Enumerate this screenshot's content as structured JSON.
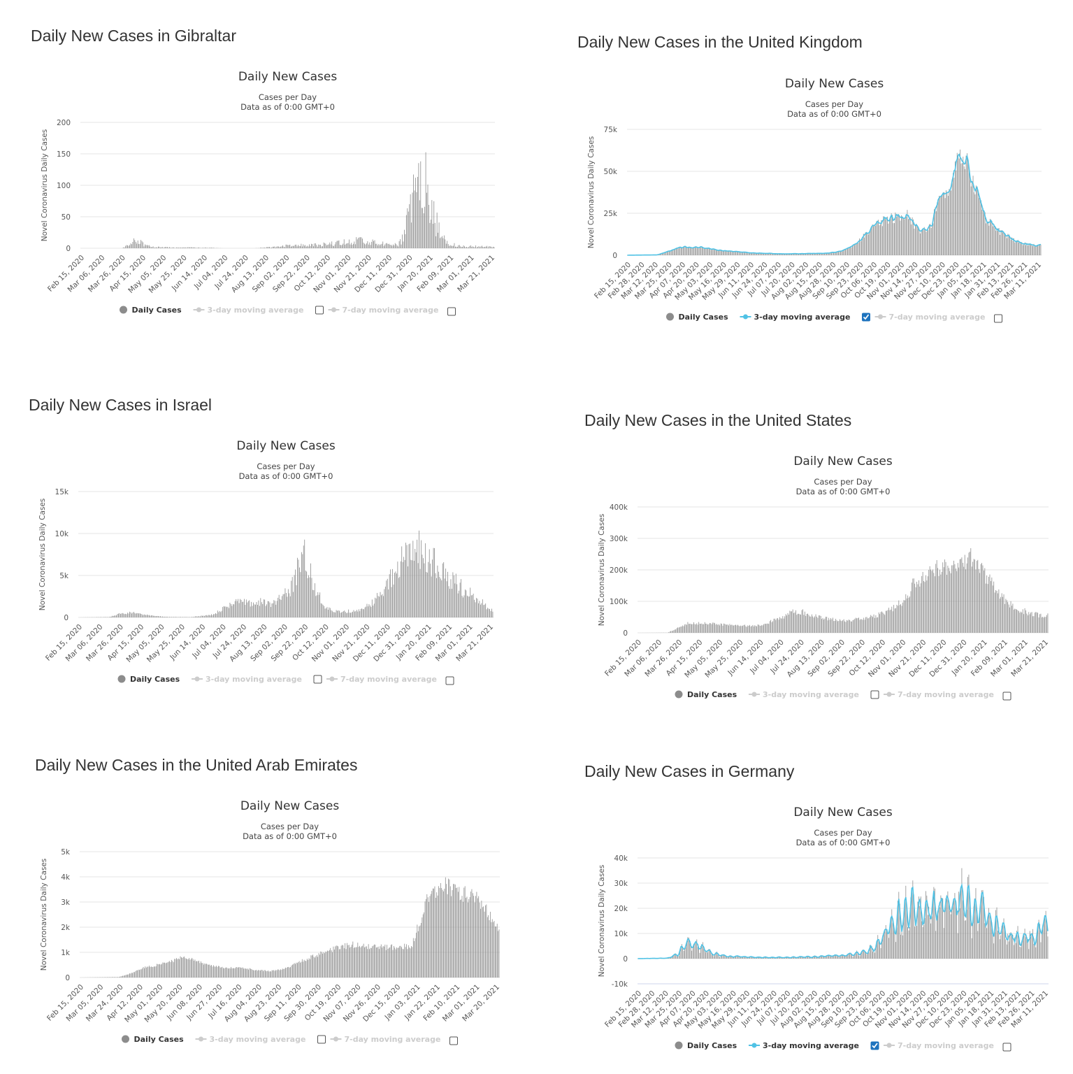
{
  "common": {
    "chart_title": "Daily New Cases",
    "subtitle_1": "Cases per Day",
    "subtitle_2": "Data as of 0:00 GMT+0",
    "ylabel": "Novel Coronavirus Daily Cases",
    "legend": {
      "daily": "Daily Cases",
      "ma3": "3-day moving average",
      "ma7": "7-day moving average"
    }
  },
  "colors": {
    "bar": "#8c8c8c",
    "ma3": "#50c2e5",
    "grid": "#e6e6e6",
    "axis": "#ccd6eb"
  },
  "panels": [
    {
      "heading": "Daily New Cases in Gibraltar",
      "ma3_checked": false,
      "chart_data": {
        "type": "bar",
        "xlabel": "",
        "ylabel": "Novel Coronavirus Daily Cases",
        "ylim": [
          0,
          200
        ],
        "yticks": [
          "0",
          "50",
          "100",
          "150",
          "200"
        ],
        "xticks": [
          "Feb 15, 2020",
          "Mar 06, 2020",
          "Mar 26, 2020",
          "Apr 15, 2020",
          "May 05, 2020",
          "May 25, 2020",
          "Jun 14, 2020",
          "Jul 04, 2020",
          "Jul 24, 2020",
          "Aug 13, 2020",
          "Sep 02, 2020",
          "Sep 22, 2020",
          "Oct 12, 2020",
          "Nov 01, 2020",
          "Nov 21, 2020",
          "Dec 11, 2020",
          "Dec 31, 2020",
          "Jan 20, 2021",
          "Feb 09, 2021",
          "Mar 01, 2021",
          "Mar 21, 2021"
        ],
        "series_knots": [
          [
            0,
            0
          ],
          [
            40,
            0
          ],
          [
            48,
            5
          ],
          [
            55,
            14
          ],
          [
            60,
            8
          ],
          [
            70,
            2
          ],
          [
            90,
            1
          ],
          [
            120,
            1
          ],
          [
            140,
            0
          ],
          [
            160,
            0
          ],
          [
            170,
            0
          ],
          [
            190,
            2
          ],
          [
            210,
            5
          ],
          [
            230,
            5
          ],
          [
            250,
            8
          ],
          [
            260,
            10
          ],
          [
            270,
            12
          ],
          [
            280,
            10
          ],
          [
            290,
            8
          ],
          [
            300,
            6
          ],
          [
            310,
            5
          ],
          [
            315,
            15
          ],
          [
            320,
            45
          ],
          [
            325,
            90
          ],
          [
            330,
            130
          ],
          [
            335,
            110
          ],
          [
            340,
            90
          ],
          [
            345,
            60
          ],
          [
            350,
            30
          ],
          [
            355,
            15
          ],
          [
            360,
            8
          ],
          [
            370,
            4
          ],
          [
            380,
            3
          ],
          [
            395,
            3
          ],
          [
            405,
            2
          ]
        ],
        "bar_noise": 0.6
      }
    },
    {
      "heading": "Daily New Cases in the United Kingdom",
      "ma3_checked": true,
      "chart_data": {
        "type": "bar",
        "xlabel": "",
        "ylabel": "Novel Coronavirus Daily Cases",
        "ylim": [
          0,
          75000
        ],
        "yticks": [
          "0",
          "25k",
          "50k",
          "75k"
        ],
        "xticks": [
          "Feb 15, 2020",
          "Feb 28, 2020",
          "Mar 12, 2020",
          "Mar 25, 2020",
          "Apr 07, 2020",
          "Apr 20, 2020",
          "May 03, 2020",
          "May 16, 2020",
          "May 29, 2020",
          "Jun 11, 2020",
          "Jun 24, 2020",
          "Jul 07, 2020",
          "Jul 20, 2020",
          "Aug 02, 2020",
          "Aug 15, 2020",
          "Aug 28, 2020",
          "Sep 10, 2020",
          "Sep 23, 2020",
          "Oct 06, 2020",
          "Oct 19, 2020",
          "Nov 01, 2020",
          "Nov 14, 2020",
          "Nov 27, 2020",
          "Dec 10, 2020",
          "Dec 23, 2020",
          "Jan 05, 2021",
          "Jan 18, 2021",
          "Jan 31, 2021",
          "Feb 13, 2021",
          "Feb 26, 2021",
          "Mar 11, 2021"
        ],
        "series_knots": [
          [
            0,
            0
          ],
          [
            30,
            200
          ],
          [
            45,
            3000
          ],
          [
            55,
            5000
          ],
          [
            75,
            4500
          ],
          [
            100,
            2500
          ],
          [
            130,
            1200
          ],
          [
            160,
            800
          ],
          [
            180,
            1000
          ],
          [
            200,
            1200
          ],
          [
            215,
            2500
          ],
          [
            225,
            5000
          ],
          [
            235,
            10000
          ],
          [
            245,
            16000
          ],
          [
            255,
            20000
          ],
          [
            265,
            22000
          ],
          [
            275,
            23000
          ],
          [
            280,
            25000
          ],
          [
            285,
            21000
          ],
          [
            292,
            15000
          ],
          [
            300,
            15000
          ],
          [
            305,
            18000
          ],
          [
            310,
            28000
          ],
          [
            318,
            36000
          ],
          [
            325,
            45000
          ],
          [
            330,
            57000
          ],
          [
            336,
            60000
          ],
          [
            340,
            55000
          ],
          [
            345,
            45000
          ],
          [
            350,
            38000
          ],
          [
            355,
            30000
          ],
          [
            360,
            22000
          ],
          [
            370,
            15000
          ],
          [
            380,
            12000
          ],
          [
            390,
            8500
          ],
          [
            400,
            6500
          ],
          [
            410,
            6000
          ],
          [
            415,
            6000
          ]
        ],
        "bar_noise": 0.15
      }
    },
    {
      "heading": "Daily New Cases in Israel",
      "ma3_checked": false,
      "chart_data": {
        "type": "bar",
        "xlabel": "",
        "ylabel": "Novel Coronavirus Daily Cases",
        "ylim": [
          0,
          15000
        ],
        "yticks": [
          "0",
          "5k",
          "10k",
          "15k"
        ],
        "xticks": [
          "Feb 15, 2020",
          "Mar 06, 2020",
          "Mar 26, 2020",
          "Apr 15, 2020",
          "May 05, 2020",
          "May 25, 2020",
          "Jun 14, 2020",
          "Jul 04, 2020",
          "Jul 24, 2020",
          "Aug 13, 2020",
          "Sep 02, 2020",
          "Sep 22, 2020",
          "Oct 12, 2020",
          "Nov 01, 2020",
          "Nov 21, 2020",
          "Dec 11, 2020",
          "Dec 31, 2020",
          "Jan 20, 2021",
          "Feb 09, 2021",
          "Mar 01, 2021",
          "Mar 21, 2021"
        ],
        "series_knots": [
          [
            0,
            0
          ],
          [
            30,
            50
          ],
          [
            40,
            400
          ],
          [
            50,
            600
          ],
          [
            60,
            400
          ],
          [
            75,
            150
          ],
          [
            90,
            50
          ],
          [
            110,
            50
          ],
          [
            130,
            300
          ],
          [
            140,
            900
          ],
          [
            150,
            1600
          ],
          [
            160,
            1800
          ],
          [
            175,
            1800
          ],
          [
            190,
            1700
          ],
          [
            200,
            2500
          ],
          [
            210,
            4000
          ],
          [
            215,
            6000
          ],
          [
            220,
            8000
          ],
          [
            225,
            6000
          ],
          [
            230,
            4000
          ],
          [
            240,
            1500
          ],
          [
            250,
            700
          ],
          [
            260,
            700
          ],
          [
            270,
            800
          ],
          [
            280,
            1200
          ],
          [
            290,
            2000
          ],
          [
            300,
            3500
          ],
          [
            310,
            5500
          ],
          [
            320,
            8000
          ],
          [
            330,
            8500
          ],
          [
            340,
            7000
          ],
          [
            350,
            6500
          ],
          [
            360,
            5000
          ],
          [
            370,
            4000
          ],
          [
            380,
            3000
          ],
          [
            390,
            2200
          ],
          [
            400,
            1200
          ],
          [
            405,
            700
          ]
        ],
        "bar_noise": 0.3
      }
    },
    {
      "heading": "Daily New Cases in the United States",
      "ma3_checked": false,
      "chart_data": {
        "type": "bar",
        "xlabel": "",
        "ylabel": "Novel Coronavirus Daily Cases",
        "ylim": [
          0,
          400000
        ],
        "yticks": [
          "0",
          "100k",
          "200k",
          "300k",
          "400k"
        ],
        "xticks": [
          "Feb 15, 2020",
          "Mar 06, 2020",
          "Mar 26, 2020",
          "Apr 15, 2020",
          "May 05, 2020",
          "May 25, 2020",
          "Jun 14, 2020",
          "Jul 04, 2020",
          "Jul 24, 2020",
          "Aug 13, 2020",
          "Sep 02, 2020",
          "Sep 22, 2020",
          "Oct 12, 2020",
          "Nov 01, 2020",
          "Nov 21, 2020",
          "Dec 11, 2020",
          "Dec 31, 2020",
          "Jan 20, 2021",
          "Feb 09, 2021",
          "Mar 01, 2021",
          "Mar 21, 2021"
        ],
        "series_knots": [
          [
            0,
            0
          ],
          [
            30,
            500
          ],
          [
            40,
            15000
          ],
          [
            50,
            30000
          ],
          [
            70,
            30000
          ],
          [
            90,
            25000
          ],
          [
            110,
            22000
          ],
          [
            125,
            25000
          ],
          [
            140,
            45000
          ],
          [
            155,
            65000
          ],
          [
            165,
            65000
          ],
          [
            180,
            50000
          ],
          [
            195,
            42000
          ],
          [
            210,
            38000
          ],
          [
            225,
            45000
          ],
          [
            240,
            55000
          ],
          [
            255,
            75000
          ],
          [
            265,
            100000
          ],
          [
            275,
            150000
          ],
          [
            285,
            175000
          ],
          [
            295,
            200000
          ],
          [
            305,
            215000
          ],
          [
            315,
            200000
          ],
          [
            325,
            220000
          ],
          [
            330,
            240000
          ],
          [
            335,
            230000
          ],
          [
            345,
            190000
          ],
          [
            355,
            150000
          ],
          [
            365,
            110000
          ],
          [
            375,
            85000
          ],
          [
            385,
            70000
          ],
          [
            395,
            60000
          ],
          [
            405,
            55000
          ],
          [
            410,
            55000
          ]
        ],
        "bar_noise": 0.15
      }
    },
    {
      "heading": "Daily New Cases in the United Arab Emirates",
      "ma3_checked": false,
      "chart_data": {
        "type": "bar",
        "xlabel": "",
        "ylabel": "Novel Coronavirus Daily Cases",
        "ylim": [
          0,
          5000
        ],
        "yticks": [
          "0",
          "1k",
          "2k",
          "3k",
          "4k",
          "5k"
        ],
        "xticks": [
          "Feb 15, 2020",
          "Mar 05, 2020",
          "Mar 24, 2020",
          "Apr 12, 2020",
          "May 01, 2020",
          "May 20, 2020",
          "Jun 08, 2020",
          "Jun 27, 2020",
          "Jul 16, 2020",
          "Aug 04, 2020",
          "Aug 23, 2020",
          "Sep 11, 2020",
          "Sep 30, 2020",
          "Oct 19, 2020",
          "Nov 07, 2020",
          "Nov 26, 2020",
          "Dec 15, 2020",
          "Jan 03, 2021",
          "Jan 22, 2021",
          "Feb 10, 2021",
          "Mar 01, 2021",
          "Mar 20, 2021"
        ],
        "series_knots": [
          [
            0,
            0
          ],
          [
            40,
            20
          ],
          [
            55,
            200
          ],
          [
            65,
            400
          ],
          [
            80,
            500
          ],
          [
            95,
            650
          ],
          [
            105,
            850
          ],
          [
            115,
            750
          ],
          [
            130,
            500
          ],
          [
            150,
            380
          ],
          [
            165,
            400
          ],
          [
            180,
            300
          ],
          [
            195,
            250
          ],
          [
            210,
            350
          ],
          [
            230,
            700
          ],
          [
            250,
            1000
          ],
          [
            265,
            1200
          ],
          [
            280,
            1300
          ],
          [
            300,
            1200
          ],
          [
            320,
            1200
          ],
          [
            330,
            1250
          ],
          [
            340,
            1200
          ],
          [
            345,
            1800
          ],
          [
            355,
            3000
          ],
          [
            365,
            3500
          ],
          [
            375,
            3700
          ],
          [
            385,
            3500
          ],
          [
            395,
            3300
          ],
          [
            405,
            3200
          ],
          [
            415,
            2800
          ],
          [
            425,
            2200
          ],
          [
            430,
            2000
          ]
        ],
        "bar_noise": 0.1
      }
    },
    {
      "heading": "Daily New Cases in Germany",
      "ma3_checked": true,
      "chart_data": {
        "type": "bar",
        "xlabel": "",
        "ylabel": "Novel Coronavirus Daily Cases",
        "ylim": [
          -10000,
          40000
        ],
        "yticks": [
          "-10k",
          "0",
          "10k",
          "20k",
          "30k",
          "40k"
        ],
        "xticks": [
          "Feb 15, 2020",
          "Feb 28, 2020",
          "Mar 12, 2020",
          "Mar 25, 2020",
          "Apr 07, 2020",
          "Apr 20, 2020",
          "May 03, 2020",
          "May 16, 2020",
          "May 29, 2020",
          "Jun 11, 2020",
          "Jun 24, 2020",
          "Jul 07, 2020",
          "Jul 20, 2020",
          "Aug 02, 2020",
          "Aug 15, 2020",
          "Aug 28, 2020",
          "Sep 10, 2020",
          "Sep 23, 2020",
          "Oct 06, 2020",
          "Oct 19, 2020",
          "Nov 01, 2020",
          "Nov 14, 2020",
          "Nov 27, 2020",
          "Dec 10, 2020",
          "Dec 23, 2020",
          "Jan 05, 2021",
          "Jan 18, 2021",
          "Jan 31, 2021",
          "Feb 13, 2021",
          "Feb 26, 2021",
          "Mar 11, 2021"
        ],
        "series_knots": [
          [
            0,
            0
          ],
          [
            30,
            200
          ],
          [
            40,
            2000
          ],
          [
            50,
            6000
          ],
          [
            55,
            6500
          ],
          [
            65,
            4000
          ],
          [
            75,
            2000
          ],
          [
            90,
            1000
          ],
          [
            120,
            500
          ],
          [
            150,
            500
          ],
          [
            180,
            800
          ],
          [
            200,
            1200
          ],
          [
            215,
            1800
          ],
          [
            225,
            2500
          ],
          [
            235,
            4000
          ],
          [
            245,
            8000
          ],
          [
            255,
            14000
          ],
          [
            265,
            18000
          ],
          [
            275,
            20000
          ],
          [
            285,
            19000
          ],
          [
            295,
            19000
          ],
          [
            305,
            21000
          ],
          [
            315,
            23000
          ],
          [
            320,
            27000
          ],
          [
            328,
            24000
          ],
          [
            335,
            20000
          ],
          [
            345,
            18000
          ],
          [
            355,
            14000
          ],
          [
            365,
            11000
          ],
          [
            375,
            8500
          ],
          [
            385,
            8000
          ],
          [
            395,
            9000
          ],
          [
            400,
            10000
          ],
          [
            405,
            13000
          ],
          [
            410,
            12000
          ]
        ],
        "bar_noise": 0.3,
        "weekly_wave": true
      }
    }
  ]
}
